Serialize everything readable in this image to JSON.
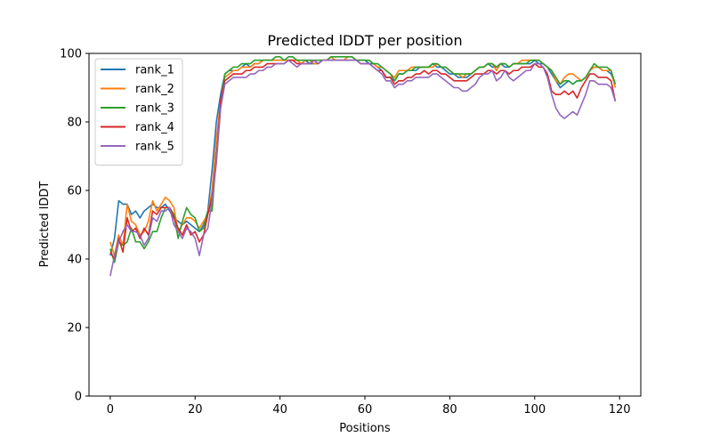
{
  "chart_data": {
    "type": "line",
    "title": "Predicted lDDT per position",
    "xlabel": "Positions",
    "ylabel": "Predicted lDDT",
    "xlim": [
      -5,
      125
    ],
    "ylim": [
      0,
      100
    ],
    "xticks": [
      0,
      20,
      40,
      60,
      80,
      100,
      120
    ],
    "yticks": [
      0,
      20,
      40,
      60,
      80,
      100
    ],
    "grid": false,
    "legend_position": "top-left",
    "x": [
      0,
      1,
      2,
      3,
      4,
      5,
      6,
      7,
      8,
      9,
      10,
      11,
      12,
      13,
      14,
      15,
      16,
      17,
      18,
      19,
      20,
      21,
      22,
      23,
      24,
      25,
      26,
      27,
      28,
      29,
      30,
      31,
      32,
      33,
      34,
      35,
      36,
      37,
      38,
      39,
      40,
      41,
      42,
      43,
      44,
      45,
      46,
      47,
      48,
      49,
      50,
      51,
      52,
      53,
      54,
      55,
      56,
      57,
      58,
      59,
      60,
      61,
      62,
      63,
      64,
      65,
      66,
      67,
      68,
      69,
      70,
      71,
      72,
      73,
      74,
      75,
      76,
      77,
      78,
      79,
      80,
      81,
      82,
      83,
      84,
      85,
      86,
      87,
      88,
      89,
      90,
      91,
      92,
      93,
      94,
      95,
      96,
      97,
      98,
      99,
      100,
      101,
      102,
      103,
      104,
      105,
      106,
      107,
      108,
      109,
      110,
      111,
      112,
      113,
      114,
      115,
      116,
      117,
      118,
      119
    ],
    "series": [
      {
        "name": "rank_1",
        "color": "#1f77b4",
        "values": [
          41,
          46,
          57,
          56,
          56,
          53,
          54,
          52,
          54,
          55,
          56,
          55,
          55,
          56,
          54,
          52,
          51,
          50,
          51,
          50,
          49,
          48,
          50,
          54,
          66,
          80,
          88,
          94,
          95,
          95,
          95,
          96,
          97,
          96,
          97,
          97,
          98,
          98,
          98,
          98,
          98,
          98,
          98,
          98,
          98,
          98,
          98,
          97,
          97,
          97,
          98,
          98,
          98,
          98,
          98,
          98,
          98,
          98,
          98,
          98,
          98,
          97,
          97,
          96,
          95,
          93,
          93,
          92,
          94,
          94,
          95,
          95,
          95,
          96,
          96,
          96,
          97,
          96,
          96,
          95,
          94,
          94,
          93,
          93,
          93,
          94,
          95,
          96,
          96,
          97,
          96,
          96,
          97,
          96,
          96,
          97,
          97,
          97,
          97,
          97,
          98,
          97,
          97,
          96,
          94,
          92,
          90,
          91,
          92,
          91,
          92,
          92,
          93,
          95,
          96,
          96,
          95,
          95,
          94,
          91
        ]
      },
      {
        "name": "rank_2",
        "color": "#ff7f0e",
        "values": [
          45,
          41,
          47,
          44,
          56,
          51,
          50,
          47,
          48,
          51,
          57,
          54,
          56,
          58,
          57,
          55,
          48,
          50,
          52,
          52,
          51,
          49,
          51,
          53,
          60,
          75,
          86,
          93,
          94,
          95,
          95,
          96,
          96,
          96,
          97,
          97,
          98,
          98,
          98,
          98,
          98,
          98,
          98,
          98,
          98,
          97,
          98,
          98,
          97,
          97,
          98,
          98,
          99,
          98,
          98,
          98,
          99,
          99,
          98,
          98,
          98,
          98,
          97,
          96,
          96,
          95,
          94,
          93,
          95,
          95,
          95,
          96,
          96,
          96,
          96,
          96,
          96,
          97,
          96,
          96,
          95,
          94,
          94,
          93,
          94,
          94,
          95,
          96,
          96,
          97,
          97,
          95,
          97,
          97,
          96,
          97,
          97,
          98,
          98,
          98,
          98,
          98,
          97,
          96,
          95,
          92,
          91,
          93,
          94,
          94,
          93,
          92,
          93,
          95,
          96,
          96,
          95,
          95,
          95,
          90
        ]
      },
      {
        "name": "rank_3",
        "color": "#2ca02c",
        "values": [
          43,
          39,
          45,
          44,
          45,
          49,
          45,
          45,
          43,
          45,
          48,
          48,
          52,
          55,
          55,
          53,
          46,
          51,
          55,
          53,
          52,
          48,
          49,
          54,
          54,
          70,
          84,
          94,
          95,
          96,
          96,
          97,
          97,
          97,
          98,
          98,
          98,
          98,
          98,
          99,
          99,
          98,
          99,
          99,
          98,
          98,
          98,
          98,
          98,
          98,
          98,
          98,
          99,
          99,
          99,
          99,
          99,
          99,
          98,
          98,
          98,
          98,
          97,
          97,
          96,
          95,
          94,
          92,
          94,
          94,
          95,
          95,
          96,
          96,
          96,
          96,
          97,
          97,
          96,
          96,
          95,
          94,
          94,
          94,
          94,
          94,
          95,
          96,
          96,
          97,
          97,
          96,
          97,
          97,
          96,
          97,
          97,
          97,
          97,
          98,
          98,
          98,
          97,
          96,
          95,
          93,
          91,
          92,
          92,
          91,
          92,
          92,
          93,
          95,
          97,
          96,
          96,
          96,
          95,
          91
        ]
      },
      {
        "name": "rank_4",
        "color": "#d62728",
        "values": [
          42,
          40,
          46,
          42,
          52,
          48,
          49,
          46,
          49,
          47,
          54,
          53,
          55,
          55,
          55,
          52,
          49,
          47,
          50,
          47,
          48,
          45,
          47,
          53,
          58,
          69,
          86,
          92,
          93,
          94,
          94,
          94,
          95,
          95,
          96,
          96,
          96,
          97,
          97,
          97,
          97,
          97,
          98,
          98,
          97,
          97,
          97,
          97,
          98,
          97,
          98,
          98,
          98,
          98,
          98,
          98,
          98,
          98,
          98,
          97,
          97,
          97,
          96,
          95,
          95,
          93,
          93,
          91,
          92,
          92,
          93,
          93,
          94,
          94,
          95,
          94,
          95,
          95,
          94,
          94,
          93,
          92,
          92,
          92,
          92,
          93,
          94,
          94,
          94,
          95,
          95,
          94,
          95,
          95,
          94,
          95,
          95,
          96,
          96,
          96,
          97,
          96,
          96,
          94,
          89,
          88,
          88,
          89,
          88,
          89,
          87,
          90,
          92,
          94,
          94,
          93,
          93,
          93,
          92,
          86
        ]
      },
      {
        "name": "rank_5",
        "color": "#9467bd",
        "values": [
          35,
          41,
          45,
          48,
          50,
          48,
          48,
          47,
          44,
          46,
          52,
          51,
          54,
          54,
          55,
          50,
          48,
          46,
          49,
          48,
          46,
          41,
          47,
          49,
          57,
          68,
          84,
          91,
          92,
          93,
          93,
          93,
          93,
          94,
          94,
          95,
          95,
          96,
          96,
          97,
          97,
          97,
          98,
          97,
          96,
          97,
          97,
          97,
          98,
          97,
          98,
          98,
          98,
          98,
          98,
          98,
          98,
          98,
          98,
          97,
          97,
          97,
          96,
          95,
          94,
          92,
          92,
          90,
          91,
          91,
          92,
          92,
          93,
          93,
          93,
          93,
          94,
          94,
          93,
          92,
          91,
          90,
          90,
          89,
          89,
          90,
          91,
          93,
          94,
          94,
          95,
          92,
          93,
          95,
          93,
          92,
          93,
          94,
          95,
          95,
          97,
          97,
          96,
          93,
          88,
          84,
          82,
          81,
          82,
          83,
          82,
          85,
          88,
          92,
          92,
          91,
          91,
          91,
          90,
          86
        ]
      }
    ]
  }
}
